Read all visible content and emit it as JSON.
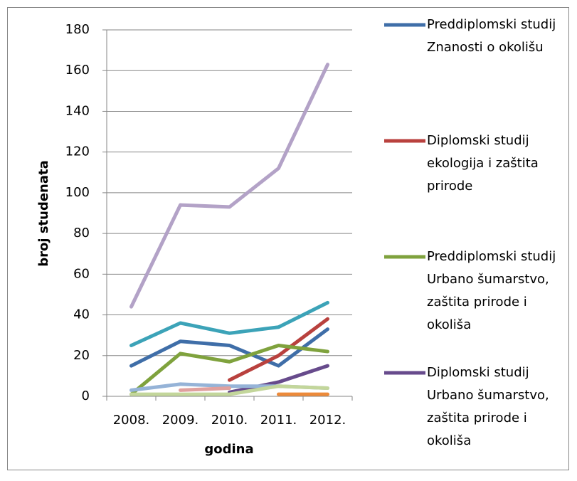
{
  "chart_data": {
    "type": "line",
    "x_label": "godina",
    "y_label": "broj studenata",
    "categories": [
      "2008.",
      "2009.",
      "2010.",
      "2011.",
      "2012."
    ],
    "ylim": [
      0,
      180
    ],
    "yticks": [
      0,
      20,
      40,
      60,
      80,
      100,
      120,
      140,
      160,
      180
    ],
    "grid": true,
    "legend": "right",
    "series": [
      {
        "name": "Preddiplomski studij Znanosti o okolišu",
        "color": "#3f6ea8",
        "values": [
          15,
          27,
          25,
          15,
          33
        ]
      },
      {
        "name": "Diplomski studij ekologija i zaštita prirode",
        "color": "#b9413e",
        "values": [
          null,
          null,
          8,
          20,
          38
        ]
      },
      {
        "name": "Preddiplomski studij Urbano šumarstvo, zaštita prirode i okoliša",
        "color": "#7fa23d",
        "values": [
          1,
          21,
          17,
          25,
          22
        ]
      },
      {
        "name": "Diplomski studij Urbano šumarstvo, zaštita prirode i okoliša",
        "color": "#674b8c",
        "values": [
          null,
          null,
          2,
          7,
          15
        ]
      },
      {
        "color": "#3ca3b8",
        "values": [
          25,
          36,
          31,
          34,
          46
        ]
      },
      {
        "color": "#ec8a3a",
        "values": [
          null,
          null,
          null,
          1,
          1
        ]
      },
      {
        "color": "#b3a2c7",
        "values": [
          44,
          94,
          93,
          112,
          163
        ]
      },
      {
        "color": "#95b3d7",
        "values": [
          3,
          6,
          5,
          5,
          4
        ]
      },
      {
        "color": "#e0a09e",
        "values": [
          null,
          3,
          4,
          null,
          null
        ]
      },
      {
        "color": "#c3d69b",
        "values": [
          1,
          1,
          1,
          5,
          4
        ]
      }
    ]
  }
}
